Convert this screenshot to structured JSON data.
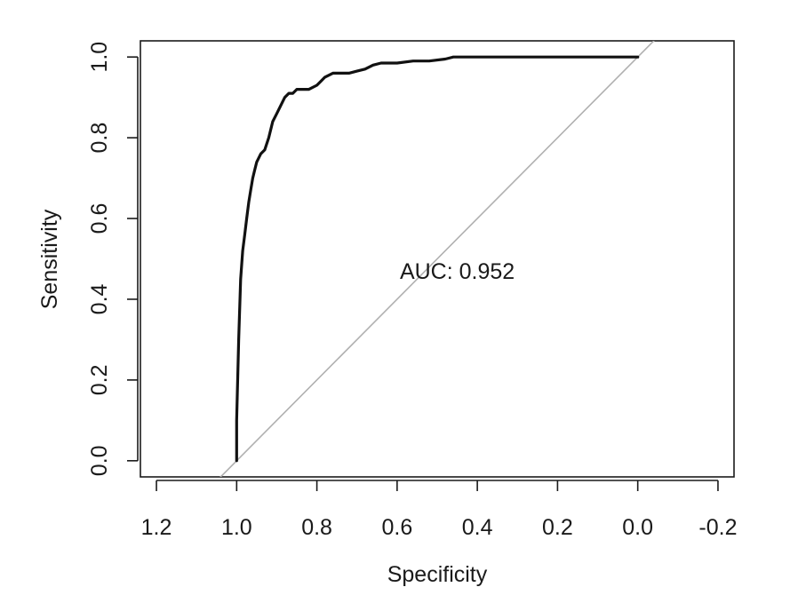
{
  "chart_data": {
    "type": "line",
    "xlabel": "Specificity",
    "ylabel": "Sensitivity",
    "xlim": [
      1.24,
      -0.24
    ],
    "ylim": [
      -0.04,
      1.04
    ],
    "x_reversed": true,
    "grid": false,
    "xticks": [
      1.2,
      1.0,
      0.8,
      0.6,
      0.4,
      0.2,
      0.0,
      -0.2
    ],
    "xtick_labels": [
      "1.2",
      "1.0",
      "0.8",
      "0.6",
      "0.4",
      "0.2",
      "0.0",
      "-0.2"
    ],
    "yticks": [
      0.0,
      0.2,
      0.4,
      0.6,
      0.8,
      1.0
    ],
    "ytick_labels": [
      "0.0",
      "0.2",
      "0.4",
      "0.6",
      "0.8",
      "1.0"
    ],
    "annotation": {
      "text": "AUC: 0.952",
      "x": 0.45,
      "y": 0.47
    },
    "reference_line": {
      "slope": 1,
      "intercept": 1,
      "color": "#b0b0b0"
    },
    "series": [
      {
        "color": "#111111",
        "x": [
          1.0,
          1.0,
          0.995,
          0.99,
          0.985,
          0.98,
          0.975,
          0.97,
          0.965,
          0.96,
          0.955,
          0.95,
          0.94,
          0.93,
          0.92,
          0.91,
          0.9,
          0.89,
          0.88,
          0.87,
          0.86,
          0.85,
          0.84,
          0.82,
          0.8,
          0.79,
          0.78,
          0.76,
          0.74,
          0.72,
          0.7,
          0.68,
          0.66,
          0.64,
          0.6,
          0.56,
          0.52,
          0.48,
          0.46,
          0.4,
          0.3,
          0.2,
          0.1,
          0.0
        ],
        "y": [
          0.0,
          0.1,
          0.3,
          0.45,
          0.52,
          0.56,
          0.6,
          0.64,
          0.67,
          0.7,
          0.72,
          0.74,
          0.76,
          0.77,
          0.8,
          0.84,
          0.86,
          0.88,
          0.9,
          0.91,
          0.91,
          0.92,
          0.92,
          0.92,
          0.93,
          0.94,
          0.95,
          0.96,
          0.96,
          0.96,
          0.965,
          0.97,
          0.98,
          0.985,
          0.985,
          0.99,
          0.99,
          0.995,
          1.0,
          1.0,
          1.0,
          1.0,
          1.0,
          1.0
        ]
      }
    ]
  }
}
